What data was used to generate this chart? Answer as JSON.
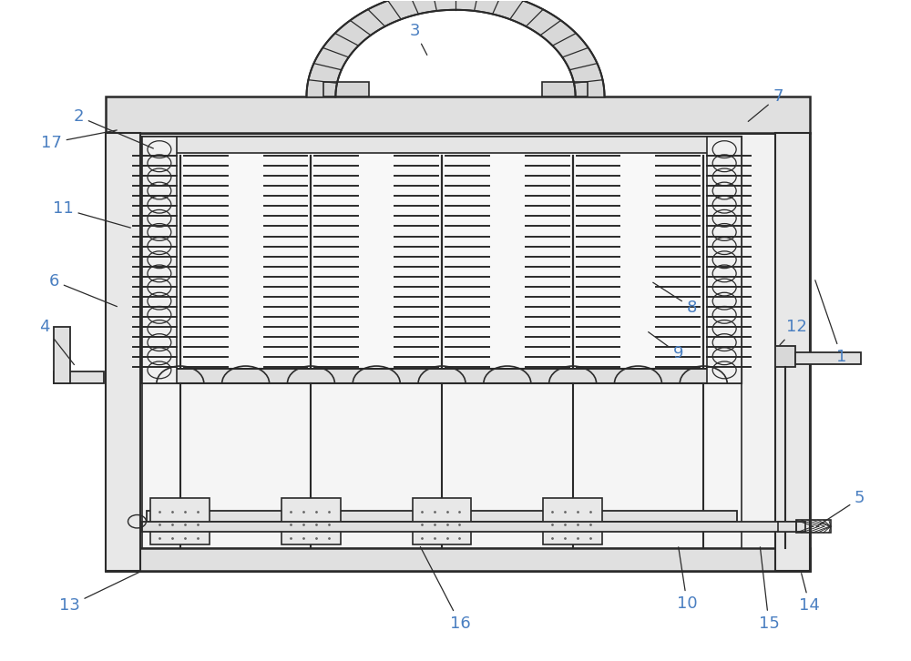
{
  "bg_color": "#ffffff",
  "line_color": "#2a2a2a",
  "label_color": "#4a7fc1",
  "fig_width": 10.0,
  "fig_height": 7.26,
  "labels": {
    "1": [
      0.925,
      0.46,
      0.895,
      0.58
    ],
    "2": [
      0.085,
      0.825,
      0.17,
      0.775
    ],
    "3": [
      0.455,
      0.955,
      0.47,
      0.915
    ],
    "4": [
      0.048,
      0.505,
      0.082,
      0.445
    ],
    "5": [
      0.945,
      0.245,
      0.895,
      0.2
    ],
    "6": [
      0.058,
      0.575,
      0.13,
      0.535
    ],
    "7": [
      0.855,
      0.855,
      0.82,
      0.815
    ],
    "8": [
      0.76,
      0.535,
      0.715,
      0.575
    ],
    "9": [
      0.745,
      0.465,
      0.71,
      0.5
    ],
    "10": [
      0.755,
      0.085,
      0.745,
      0.175
    ],
    "11": [
      0.068,
      0.685,
      0.145,
      0.655
    ],
    "12": [
      0.875,
      0.505,
      0.855,
      0.475
    ],
    "13": [
      0.075,
      0.082,
      0.155,
      0.135
    ],
    "14": [
      0.89,
      0.082,
      0.88,
      0.135
    ],
    "15": [
      0.845,
      0.055,
      0.835,
      0.175
    ],
    "16": [
      0.505,
      0.055,
      0.46,
      0.175
    ],
    "17": [
      0.055,
      0.785,
      0.13,
      0.805
    ]
  }
}
